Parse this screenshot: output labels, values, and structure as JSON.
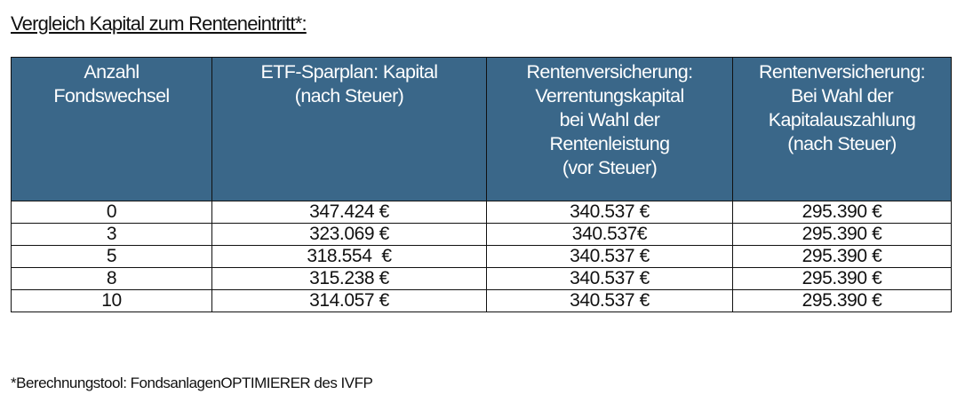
{
  "title": "Vergleich Kapital zum Renteneintritt*:",
  "table": {
    "headers": [
      [
        "Anzahl",
        "Fondswechsel"
      ],
      [
        "ETF-Sparplan: Kapital",
        "(nach Steuer)"
      ],
      [
        "Rentenversicherung:",
        "Verrentungskapital",
        "bei Wahl der",
        "Rentenleistung",
        "(vor Steuer)"
      ],
      [
        "Rentenversicherung:",
        "Bei Wahl der",
        "Kapitalauszahlung",
        "(nach Steuer)"
      ]
    ],
    "header_color": "#3a6789",
    "rows": [
      [
        "0",
        "347.424 €",
        "340.537 €",
        "295.390 €"
      ],
      [
        "3",
        "323.069 €",
        "340.537€",
        "295.390 €"
      ],
      [
        "5",
        "318.554  €",
        "340.537 €",
        "295.390 €"
      ],
      [
        "8",
        "315.238 €",
        "340.537 €",
        "295.390 €"
      ],
      [
        "10",
        "314.057 €",
        "340.537 €",
        "295.390 €"
      ]
    ]
  },
  "footnote": "*Berechnungstool: FondsanlagenOPTIMIERER des IVFP"
}
